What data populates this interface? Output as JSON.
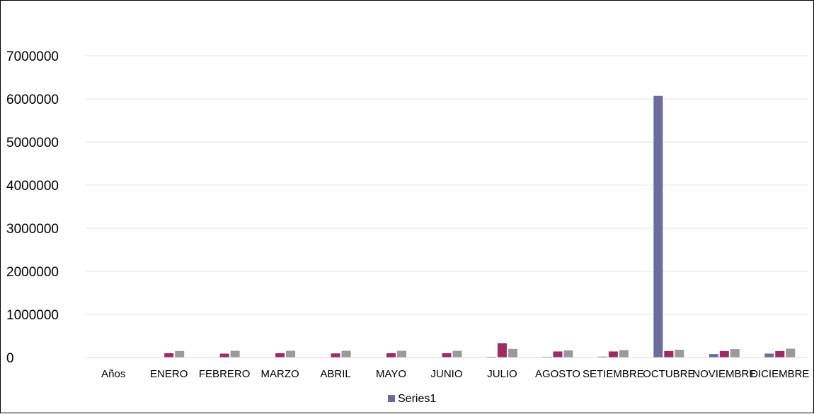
{
  "chart_data": {
    "type": "bar",
    "categories": [
      "Años",
      "ENERO",
      "FEBRERO",
      "MARZO",
      "ABRIL",
      "MAYO",
      "JUNIO",
      "JULIO",
      "AGOSTO",
      "SETIEMBRE",
      "OCTUBRE",
      "NOVIEMBRE",
      "DICIEMBRE"
    ],
    "series": [
      {
        "name": "Series1",
        "color": "#6a6b9e",
        "values": [
          0,
          0,
          0,
          0,
          0,
          0,
          0,
          12000,
          15000,
          20000,
          6070000,
          80000,
          90000
        ]
      },
      {
        "color": "#9b2d61",
        "values": [
          0,
          100000,
          90000,
          100000,
          95000,
          100000,
          100000,
          330000,
          140000,
          140000,
          150000,
          150000,
          150000
        ]
      },
      {
        "color": "#9a9a9a",
        "values": [
          0,
          150000,
          155000,
          155000,
          155000,
          155000,
          155000,
          200000,
          165000,
          170000,
          180000,
          195000,
          205000
        ]
      }
    ],
    "y_ticks": [
      "0",
      "1000000",
      "2000000",
      "3000000",
      "4000000",
      "5000000",
      "6000000",
      "7000000"
    ],
    "ylim": [
      0,
      7000000
    ],
    "title": "",
    "xlabel": "",
    "ylabel": "",
    "grid": true,
    "legend": {
      "position": "bottom",
      "entries": [
        "Series1"
      ]
    }
  }
}
